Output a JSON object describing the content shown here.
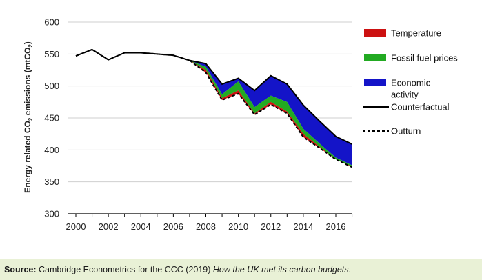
{
  "chart_data": {
    "type": "area",
    "ylabel_main": "Energy related CO",
    "ylabel_sub": "2",
    "ylabel_tail": " emissions (mtCO",
    "ylabel_sub2": "2",
    "ylabel_end": ")",
    "ylim": [
      300,
      600
    ],
    "xlim": [
      2000,
      2017
    ],
    "yticks": [
      300,
      350,
      400,
      450,
      500,
      550,
      600
    ],
    "xticks": [
      2000,
      2002,
      2004,
      2006,
      2008,
      2010,
      2012,
      2014,
      2016
    ],
    "grid": "horizontal",
    "legend_position": "right",
    "x": [
      2000,
      2001,
      2002,
      2003,
      2004,
      2005,
      2006,
      2007,
      2008,
      2009,
      2010,
      2011,
      2012,
      2013,
      2014,
      2015,
      2016,
      2017
    ],
    "counterfactual": [
      547,
      557,
      541,
      552,
      552,
      550,
      548,
      540,
      535,
      503,
      512,
      493,
      516,
      503,
      470,
      445,
      421,
      409
    ],
    "after_economic": [
      547,
      557,
      541,
      552,
      552,
      550,
      548,
      540,
      530,
      487,
      507,
      467,
      485,
      475,
      433,
      410,
      388,
      376
    ],
    "after_fossil": [
      547,
      557,
      541,
      552,
      552,
      550,
      548,
      540,
      525,
      481,
      493,
      457,
      475,
      460,
      425,
      405,
      385,
      374
    ],
    "outturn": [
      547,
      557,
      541,
      552,
      552,
      550,
      548,
      540,
      521,
      478,
      488,
      455,
      471,
      457,
      420,
      403,
      385,
      373
    ],
    "legend": [
      {
        "label": "Temperature",
        "color": "#cc1111",
        "kind": "box"
      },
      {
        "label": "Fossil fuel prices",
        "color": "#22aa22",
        "kind": "box"
      },
      {
        "label": "Economic activity",
        "color": "#1414c8",
        "kind": "box",
        "lines": [
          "Economic",
          "activity"
        ]
      },
      {
        "label": "Counterfactual",
        "color": "#000000",
        "kind": "line"
      },
      {
        "label": "Outturn",
        "color": "#000000",
        "kind": "dash"
      }
    ]
  },
  "source": {
    "label": "Source:",
    "text": " Cambridge Econometrics for the CCC (2019) ",
    "title": "How the UK met its carbon budgets",
    "end": "."
  }
}
